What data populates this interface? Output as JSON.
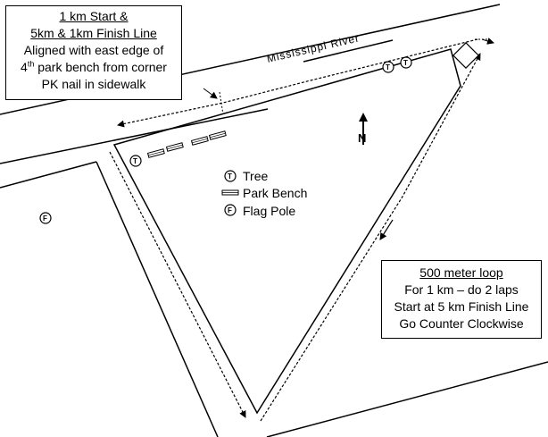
{
  "start_callout": {
    "line1": "1 km Start &",
    "line2": "5km & 1km Finish Line",
    "line3": "Aligned with east edge of",
    "line4_sup": "th",
    "line4_num": "4",
    "line4_rest": " park bench from corner",
    "line5": "PK nail in sidewalk"
  },
  "river_label": "Mississippi   River",
  "north_label": "N",
  "legend": {
    "tree_symbol": "T",
    "tree_label": "Tree",
    "bench_label": "Park Bench",
    "flag_symbol": "F",
    "flag_label": "Flag Pole"
  },
  "loop_callout": {
    "title": "500 meter loop",
    "line1": "For 1 km – do 2 laps",
    "line2": "Start at 5 km Finish Line",
    "line3": "Go Counter Clockwise"
  },
  "map_symbols": {
    "tree": "T",
    "flag": "F"
  }
}
